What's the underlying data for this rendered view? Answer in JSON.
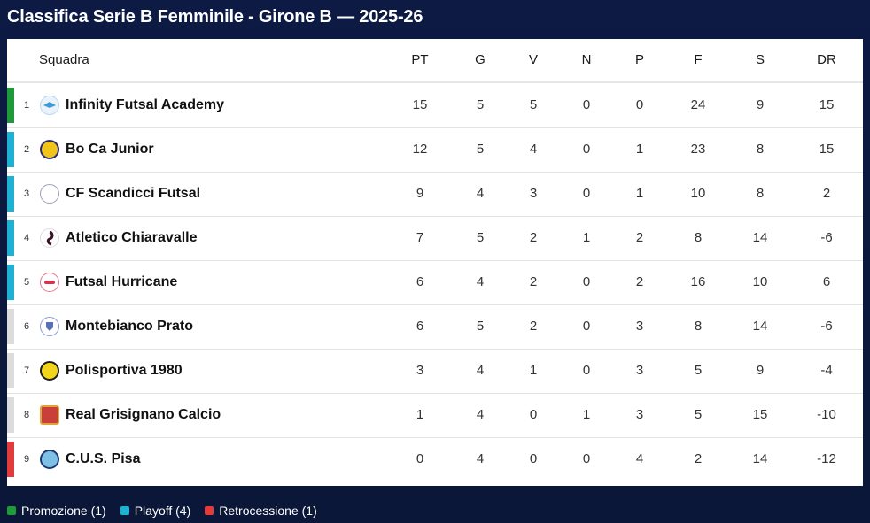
{
  "title": "Classifica Serie B Femminile - Girone B — 2025-26",
  "colors": {
    "promotion": "#1f9a3a",
    "playoff": "#1fb1d4",
    "relegation": "#e23b3b",
    "neutral": "#dcdcdc"
  },
  "headers": {
    "team": "Squadra",
    "pt": "PT",
    "g": "G",
    "v": "V",
    "n": "N",
    "p": "P",
    "f": "F",
    "s": "S",
    "dr": "DR"
  },
  "rows": [
    {
      "pos": "1",
      "team": "Infinity Futsal Academy",
      "pt": "15",
      "g": "5",
      "v": "5",
      "n": "0",
      "p": "0",
      "f": "24",
      "s": "9",
      "dr": "15"
    },
    {
      "pos": "2",
      "team": "Bo Ca Junior",
      "pt": "12",
      "g": "5",
      "v": "4",
      "n": "0",
      "p": "1",
      "f": "23",
      "s": "8",
      "dr": "15"
    },
    {
      "pos": "3",
      "team": "CF Scandicci Futsal",
      "pt": "9",
      "g": "4",
      "v": "3",
      "n": "0",
      "p": "1",
      "f": "10",
      "s": "8",
      "dr": "2"
    },
    {
      "pos": "4",
      "team": "Atletico Chiaravalle",
      "pt": "7",
      "g": "5",
      "v": "2",
      "n": "1",
      "p": "2",
      "f": "8",
      "s": "14",
      "dr": "-6"
    },
    {
      "pos": "5",
      "team": "Futsal Hurricane",
      "pt": "6",
      "g": "4",
      "v": "2",
      "n": "0",
      "p": "2",
      "f": "16",
      "s": "10",
      "dr": "6"
    },
    {
      "pos": "6",
      "team": "Montebianco Prato",
      "pt": "6",
      "g": "5",
      "v": "2",
      "n": "0",
      "p": "3",
      "f": "8",
      "s": "14",
      "dr": "-6"
    },
    {
      "pos": "7",
      "team": "Polisportiva 1980",
      "pt": "3",
      "g": "4",
      "v": "1",
      "n": "0",
      "p": "3",
      "f": "5",
      "s": "9",
      "dr": "-4"
    },
    {
      "pos": "8",
      "team": "Real Grisignano Calcio",
      "pt": "1",
      "g": "4",
      "v": "0",
      "n": "1",
      "p": "3",
      "f": "5",
      "s": "15",
      "dr": "-10"
    },
    {
      "pos": "9",
      "team": "C.U.S. Pisa",
      "pt": "0",
      "g": "4",
      "v": "0",
      "n": "0",
      "p": "4",
      "f": "2",
      "s": "14",
      "dr": "-12"
    }
  ],
  "legend": [
    {
      "label": "Promozione (1)",
      "color": "#1f9a3a"
    },
    {
      "label": "Playoff (4)",
      "color": "#1fb1d4"
    },
    {
      "label": "Retrocessione (1)",
      "color": "#e23b3b"
    }
  ]
}
